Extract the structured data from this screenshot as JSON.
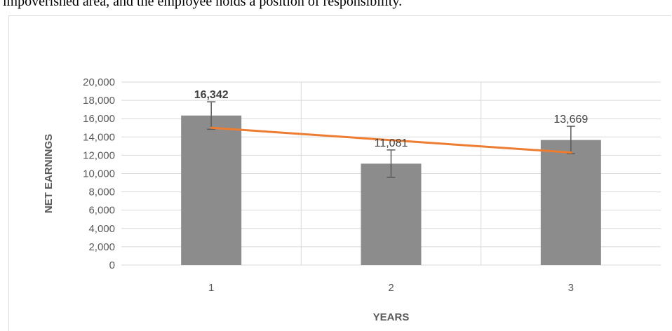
{
  "document": {
    "top_text": "impoverished area, and the employee holds a position of responsibility."
  },
  "chart_data": {
    "type": "bar",
    "title": "",
    "xlabel": "YEARS",
    "ylabel": "NET EARNINGS",
    "categories": [
      "1",
      "2",
      "3"
    ],
    "values": [
      16342,
      11081,
      13669
    ],
    "data_labels": [
      "16,342",
      "11,081",
      "13,669"
    ],
    "data_label_bold": [
      true,
      false,
      false
    ],
    "error_bars": [
      1500,
      1500,
      1500
    ],
    "ylim": [
      0,
      20000
    ],
    "yticks": [
      0,
      2000,
      4000,
      6000,
      8000,
      10000,
      12000,
      14000,
      16000,
      18000,
      20000
    ],
    "ytick_labels": [
      "0",
      "2,000",
      "4,000",
      "6,000",
      "8,000",
      "10,000",
      "12,000",
      "14,000",
      "16,000",
      "18,000",
      "20,000"
    ],
    "trendline": {
      "type": "linear",
      "start": 15000,
      "end": 12300
    },
    "grid": true,
    "colors": {
      "bar": "#8c8c8c",
      "trendline": "#ed7d31",
      "error_bar": "#595959",
      "grid": "#d9d9d9"
    }
  }
}
